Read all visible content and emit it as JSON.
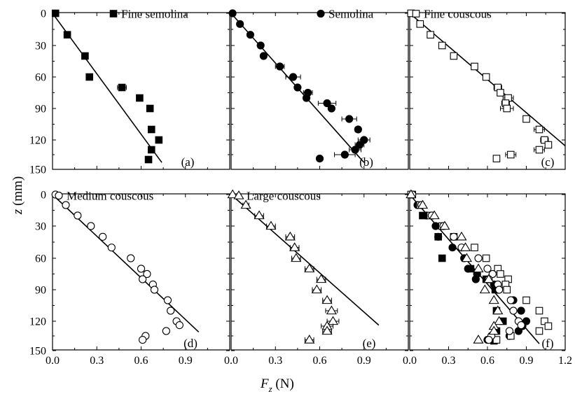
{
  "figure": {
    "xlabel_var": "F",
    "xlabel_sub": "z",
    "xlabel_unit": " (N)",
    "ylabel_var": "z",
    "ylabel_unit": " (mm)"
  },
  "chart_data": [
    {
      "type": "scatter",
      "panel": "(a)",
      "title": "",
      "legend": [
        "Fine semolina"
      ],
      "legend_position": "top-right",
      "xlabel": "F_z (N)",
      "ylabel": "z (mm)",
      "xlim": [
        0,
        1.2
      ],
      "ylim": [
        150,
        0
      ],
      "y_inverted": true,
      "xticks": [
        "0.0",
        "0.3",
        "0.6",
        "0.9",
        "1.2"
      ],
      "yticks": [
        "0",
        "30",
        "60",
        "90",
        "120",
        "150"
      ],
      "series": [
        {
          "name": "Fine semolina",
          "marker": "square-filled",
          "points": [
            [
              0.02,
              0
            ],
            [
              0.1,
              20
            ],
            [
              0.22,
              40
            ],
            [
              0.25,
              60
            ],
            [
              0.47,
              70
            ],
            [
              0.59,
              80
            ],
            [
              0.66,
              90
            ],
            [
              0.67,
              110
            ],
            [
              0.72,
              120
            ],
            [
              0.67,
              130
            ],
            [
              0.65,
              140
            ]
          ],
          "xerr": [
            0,
            0,
            0,
            0,
            0.03,
            0,
            0,
            0,
            0,
            0,
            0
          ]
        }
      ],
      "fit_line": [
        [
          0,
          0
        ],
        [
          0.74,
          143
        ]
      ]
    },
    {
      "type": "scatter",
      "panel": "(b)",
      "title": "",
      "legend": [
        "Semolina"
      ],
      "legend_position": "top-right",
      "xlim": [
        0,
        1.2
      ],
      "ylim": [
        150,
        0
      ],
      "y_inverted": true,
      "xticks": [
        "0.0",
        "0.3",
        "0.6",
        "0.9",
        "1.2"
      ],
      "yticks": [
        "0",
        "30",
        "60",
        "90",
        "120",
        "150"
      ],
      "series": [
        {
          "name": "Semolina",
          "marker": "circle-filled",
          "points": [
            [
              0.01,
              0
            ],
            [
              0.06,
              10
            ],
            [
              0.13,
              20
            ],
            [
              0.2,
              30
            ],
            [
              0.22,
              40
            ],
            [
              0.33,
              50
            ],
            [
              0.42,
              60
            ],
            [
              0.45,
              70
            ],
            [
              0.52,
              75
            ],
            [
              0.51,
              80
            ],
            [
              0.65,
              85
            ],
            [
              0.68,
              90
            ],
            [
              0.8,
              100
            ],
            [
              0.86,
              110
            ],
            [
              0.9,
              120
            ],
            [
              0.87,
              125
            ],
            [
              0.84,
              130
            ],
            [
              0.77,
              135
            ],
            [
              0.6,
              139
            ]
          ],
          "xerr": [
            0,
            0,
            0,
            0,
            0,
            0.03,
            0.05,
            0,
            0.03,
            0,
            0.06,
            0,
            0.05,
            0.02,
            0.04,
            0.03,
            0.04,
            0.07,
            0
          ]
        }
      ],
      "fit_line": [
        [
          0,
          0
        ],
        [
          0.9,
          143
        ]
      ]
    },
    {
      "type": "scatter",
      "panel": "(c)",
      "title": "",
      "legend": [
        "Fine couscous"
      ],
      "legend_position": "top-right",
      "xlim": [
        0,
        1.2
      ],
      "ylim": [
        150,
        0
      ],
      "y_inverted": true,
      "xticks": [
        "0.0",
        "0.3",
        "0.6",
        "0.9",
        "1.2"
      ],
      "yticks": [
        "0",
        "30",
        "60",
        "90",
        "120",
        "150"
      ],
      "series": [
        {
          "name": "Fine couscous",
          "marker": "square-open",
          "points": [
            [
              0.01,
              0
            ],
            [
              0.08,
              10
            ],
            [
              0.16,
              20
            ],
            [
              0.25,
              30
            ],
            [
              0.34,
              40
            ],
            [
              0.5,
              50
            ],
            [
              0.59,
              60
            ],
            [
              0.68,
              70
            ],
            [
              0.7,
              75
            ],
            [
              0.76,
              80
            ],
            [
              0.74,
              85
            ],
            [
              0.75,
              90
            ],
            [
              0.9,
              100
            ],
            [
              1.0,
              110
            ],
            [
              1.04,
              120
            ],
            [
              1.07,
              125
            ],
            [
              1.0,
              130
            ],
            [
              0.78,
              135
            ],
            [
              0.67,
              139
            ]
          ],
          "xerr": [
            0,
            0.02,
            0,
            0,
            0.02,
            0,
            0.02,
            0.03,
            0.02,
            0.04,
            0.03,
            0.05,
            0,
            0.04,
            0.03,
            0.02,
            0.04,
            0.04,
            0.02
          ]
        }
      ],
      "fit_line": [
        [
          0,
          0
        ],
        [
          1.2,
          126
        ]
      ]
    },
    {
      "type": "scatter",
      "panel": "(d)",
      "title": "",
      "legend": [
        "Medium couscous"
      ],
      "legend_position": "top-left",
      "xlim": [
        0,
        1.2
      ],
      "ylim": [
        150,
        0
      ],
      "y_inverted": true,
      "xticks": [
        "0.0",
        "0.3",
        "0.6",
        "0.9",
        "1.2"
      ],
      "yticks": [
        "0",
        "30",
        "60",
        "90",
        "120",
        "150"
      ],
      "series": [
        {
          "name": "Medium couscous",
          "marker": "circle-open",
          "points": [
            [
              0.02,
              0
            ],
            [
              0.09,
              10
            ],
            [
              0.17,
              20
            ],
            [
              0.26,
              30
            ],
            [
              0.34,
              40
            ],
            [
              0.4,
              50
            ],
            [
              0.53,
              60
            ],
            [
              0.6,
              70
            ],
            [
              0.64,
              75
            ],
            [
              0.61,
              80
            ],
            [
              0.68,
              85
            ],
            [
              0.69,
              90
            ],
            [
              0.78,
              100
            ],
            [
              0.8,
              110
            ],
            [
              0.84,
              120
            ],
            [
              0.86,
              124
            ],
            [
              0.77,
              130
            ],
            [
              0.63,
              135
            ],
            [
              0.61,
              139
            ]
          ],
          "xerr": []
        }
      ],
      "fit_line": [
        [
          0,
          0
        ],
        [
          0.99,
          131
        ]
      ]
    },
    {
      "type": "scatter",
      "panel": "(e)",
      "title": "",
      "legend": [
        "Large couscous"
      ],
      "legend_position": "top-left",
      "xlim": [
        0,
        1.2
      ],
      "ylim": [
        150,
        0
      ],
      "y_inverted": true,
      "xticks": [
        "0.0",
        "0.3",
        "0.6",
        "0.9",
        "1.2"
      ],
      "yticks": [
        "0",
        "30",
        "60",
        "90",
        "120",
        "150"
      ],
      "series": [
        {
          "name": "Large couscous",
          "marker": "triangle-open",
          "points": [
            [
              0.01,
              0
            ],
            [
              0.1,
              10
            ],
            [
              0.19,
              20
            ],
            [
              0.27,
              30
            ],
            [
              0.4,
              40
            ],
            [
              0.43,
              50
            ],
            [
              0.44,
              60
            ],
            [
              0.53,
              70
            ],
            [
              0.61,
              80
            ],
            [
              0.58,
              90
            ],
            [
              0.65,
              100
            ],
            [
              0.68,
              110
            ],
            [
              0.69,
              120
            ],
            [
              0.65,
              125
            ],
            [
              0.65,
              130
            ],
            [
              0.53,
              139
            ]
          ],
          "xerr": [
            0,
            0.02,
            0.03,
            0.03,
            0.03,
            0.03,
            0.03,
            0.03,
            0.03,
            0.03,
            0.03,
            0.04,
            0.04,
            0.04,
            0.03,
            0.03
          ]
        }
      ],
      "fit_line": [
        [
          0,
          0
        ],
        [
          1.0,
          124
        ]
      ]
    },
    {
      "type": "scatter",
      "panel": "(f)",
      "title": "",
      "legend": [],
      "legend_position": "none",
      "xlim": [
        0,
        1.2
      ],
      "ylim": [
        150,
        0
      ],
      "y_inverted": true,
      "xticks": [
        "0.0",
        "0.3",
        "0.6",
        "0.9",
        "1.2"
      ],
      "yticks": [
        "0",
        "30",
        "60",
        "90",
        "120",
        "150"
      ],
      "series": [
        {
          "name": "Fine semolina",
          "marker": "square-filled",
          "points": [
            [
              0.02,
              0
            ],
            [
              0.1,
              20
            ],
            [
              0.22,
              40
            ],
            [
              0.25,
              60
            ],
            [
              0.47,
              70
            ],
            [
              0.59,
              80
            ],
            [
              0.66,
              90
            ],
            [
              0.67,
              110
            ],
            [
              0.72,
              120
            ],
            [
              0.67,
              130
            ],
            [
              0.65,
              140
            ]
          ]
        },
        {
          "name": "Semolina",
          "marker": "circle-filled",
          "points": [
            [
              0.01,
              0
            ],
            [
              0.06,
              10
            ],
            [
              0.13,
              20
            ],
            [
              0.2,
              30
            ],
            [
              0.22,
              40
            ],
            [
              0.33,
              50
            ],
            [
              0.42,
              60
            ],
            [
              0.45,
              70
            ],
            [
              0.52,
              75
            ],
            [
              0.51,
              80
            ],
            [
              0.65,
              85
            ],
            [
              0.68,
              90
            ],
            [
              0.8,
              100
            ],
            [
              0.86,
              110
            ],
            [
              0.9,
              120
            ],
            [
              0.87,
              125
            ],
            [
              0.84,
              130
            ],
            [
              0.77,
              135
            ],
            [
              0.6,
              139
            ]
          ]
        },
        {
          "name": "Fine couscous",
          "marker": "square-open",
          "points": [
            [
              0.01,
              0
            ],
            [
              0.08,
              10
            ],
            [
              0.16,
              20
            ],
            [
              0.25,
              30
            ],
            [
              0.34,
              40
            ],
            [
              0.5,
              50
            ],
            [
              0.59,
              60
            ],
            [
              0.68,
              70
            ],
            [
              0.7,
              75
            ],
            [
              0.76,
              80
            ],
            [
              0.74,
              85
            ],
            [
              0.75,
              90
            ],
            [
              0.9,
              100
            ],
            [
              1.0,
              110
            ],
            [
              1.04,
              120
            ],
            [
              1.07,
              125
            ],
            [
              1.0,
              130
            ],
            [
              0.78,
              135
            ],
            [
              0.67,
              139
            ]
          ]
        },
        {
          "name": "Medium couscous",
          "marker": "circle-open",
          "points": [
            [
              0.02,
              0
            ],
            [
              0.09,
              10
            ],
            [
              0.17,
              20
            ],
            [
              0.26,
              30
            ],
            [
              0.34,
              40
            ],
            [
              0.4,
              50
            ],
            [
              0.53,
              60
            ],
            [
              0.6,
              70
            ],
            [
              0.64,
              75
            ],
            [
              0.61,
              80
            ],
            [
              0.68,
              85
            ],
            [
              0.69,
              90
            ],
            [
              0.78,
              100
            ],
            [
              0.8,
              110
            ],
            [
              0.84,
              120
            ],
            [
              0.86,
              124
            ],
            [
              0.77,
              130
            ],
            [
              0.63,
              135
            ],
            [
              0.61,
              139
            ]
          ]
        },
        {
          "name": "Large couscous",
          "marker": "triangle-open",
          "points": [
            [
              0.01,
              0
            ],
            [
              0.1,
              10
            ],
            [
              0.19,
              20
            ],
            [
              0.27,
              30
            ],
            [
              0.4,
              40
            ],
            [
              0.43,
              50
            ],
            [
              0.44,
              60
            ],
            [
              0.53,
              70
            ],
            [
              0.61,
              80
            ],
            [
              0.58,
              90
            ],
            [
              0.65,
              100
            ],
            [
              0.68,
              110
            ],
            [
              0.69,
              120
            ],
            [
              0.65,
              125
            ],
            [
              0.65,
              130
            ],
            [
              0.53,
              139
            ]
          ]
        }
      ],
      "fit_line": [
        [
          0,
          0
        ],
        [
          1.0,
          143
        ]
      ]
    }
  ]
}
